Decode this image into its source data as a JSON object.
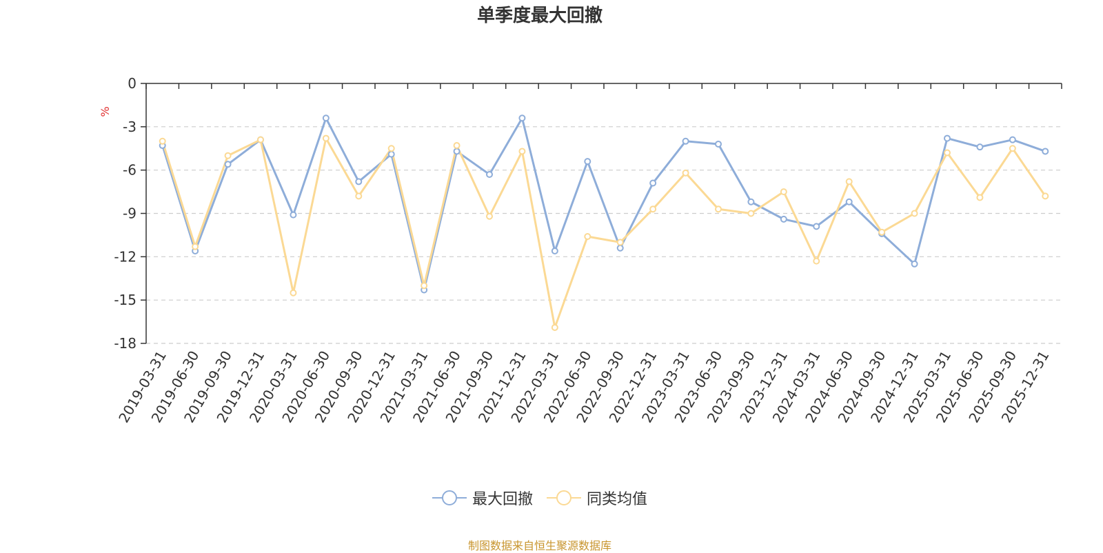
{
  "chart_data": {
    "type": "line",
    "title": "单季度最大回撤",
    "ylabel": "%",
    "ylim": [
      -18,
      0
    ],
    "yticks": [
      0,
      -3,
      -6,
      -9,
      -12,
      -15,
      -18
    ],
    "grid": true,
    "legend_position": "bottom",
    "categories": [
      "2019-03-31",
      "2019-06-30",
      "2019-09-30",
      "2019-12-31",
      "2020-03-31",
      "2020-06-30",
      "2020-09-30",
      "2020-12-31",
      "2021-03-31",
      "2021-06-30",
      "2021-09-30",
      "2021-12-31",
      "2022-03-31",
      "2022-06-30",
      "2022-09-30",
      "2022-12-31",
      "2023-03-31",
      "2023-06-30",
      "2023-09-30",
      "2023-12-31",
      "2024-03-31",
      "2024-06-30",
      "2024-09-30",
      "2024-12-31",
      "2025-03-31",
      "2025-06-30",
      "2025-09-30",
      "2025-12-31"
    ],
    "series": [
      {
        "name": "最大回撤",
        "color": "#8eadd9",
        "values": [
          -4.3,
          -11.6,
          -5.6,
          -3.9,
          -9.1,
          -2.4,
          -6.8,
          -4.9,
          -14.3,
          -4.7,
          -6.3,
          -2.4,
          -11.6,
          -5.4,
          -11.4,
          -6.9,
          -4.0,
          -4.2,
          -8.2,
          -9.4,
          -9.9,
          -8.2,
          -10.4,
          -12.5,
          -3.8,
          -4.4,
          -3.9,
          -4.7
        ]
      },
      {
        "name": "同类均值",
        "color": "#fbd994",
        "values": [
          -4.0,
          -11.3,
          -5.0,
          -3.9,
          -14.5,
          -3.8,
          -7.8,
          -4.5,
          -14.0,
          -4.3,
          -9.2,
          -4.7,
          -16.9,
          -10.6,
          -11.0,
          -8.7,
          -6.2,
          -8.7,
          -9.0,
          -7.5,
          -12.3,
          -6.8,
          -10.3,
          -9.0,
          -4.8,
          -7.9,
          -4.5,
          -7.8
        ]
      }
    ]
  },
  "source_text": "制图数据来自恒生聚源数据库"
}
